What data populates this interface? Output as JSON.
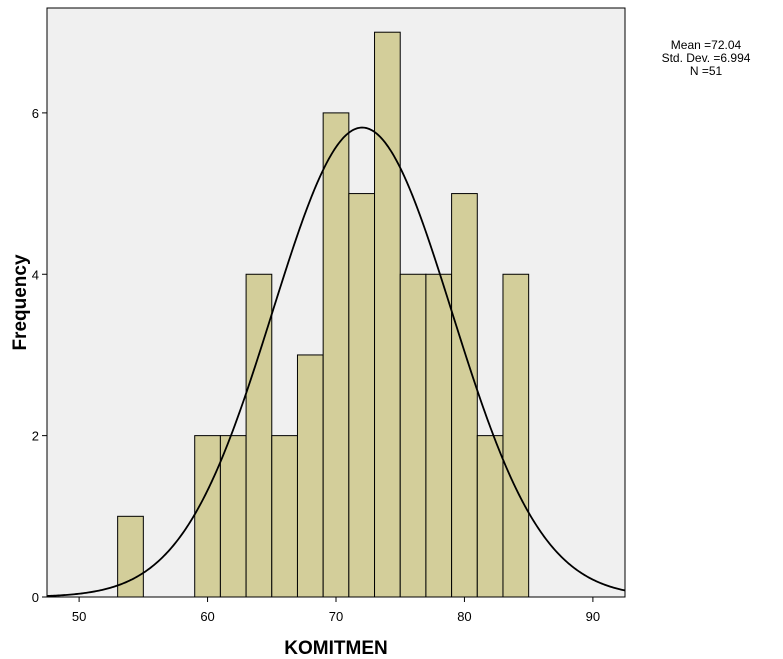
{
  "chart_data": {
    "type": "bar",
    "subtype": "histogram",
    "xlabel": "KOMITMEN",
    "ylabel": "Frequency",
    "xlim": [
      47.5,
      92.5
    ],
    "ylim": [
      0,
      7.3
    ],
    "xticks": [
      50,
      60,
      70,
      80,
      90
    ],
    "yticks": [
      0,
      2,
      4,
      6
    ],
    "bin_width": 2,
    "bins": [
      {
        "start": 53,
        "end": 55,
        "count": 1
      },
      {
        "start": 59,
        "end": 61,
        "count": 2
      },
      {
        "start": 61,
        "end": 63,
        "count": 2
      },
      {
        "start": 63,
        "end": 65,
        "count": 4
      },
      {
        "start": 65,
        "end": 67,
        "count": 2
      },
      {
        "start": 67,
        "end": 69,
        "count": 3
      },
      {
        "start": 69,
        "end": 71,
        "count": 6
      },
      {
        "start": 71,
        "end": 73,
        "count": 5
      },
      {
        "start": 73,
        "end": 75,
        "count": 7
      },
      {
        "start": 75,
        "end": 77,
        "count": 4
      },
      {
        "start": 77,
        "end": 79,
        "count": 4
      },
      {
        "start": 79,
        "end": 81,
        "count": 5
      },
      {
        "start": 81,
        "end": 83,
        "count": 2
      },
      {
        "start": 83,
        "end": 85,
        "count": 4
      }
    ],
    "normal_curve": {
      "mean": 72.04,
      "std_dev": 6.994,
      "n": 51
    },
    "grid": false,
    "colors": {
      "bar_fill": "#d3ce9a",
      "bar_stroke": "#000000",
      "plot_bg": "#f0f0f0",
      "curve": "#000000"
    }
  },
  "stats": {
    "mean_text": "Mean =72.04",
    "std_text": "Std. Dev. =6.994",
    "n_text": "N =51"
  }
}
